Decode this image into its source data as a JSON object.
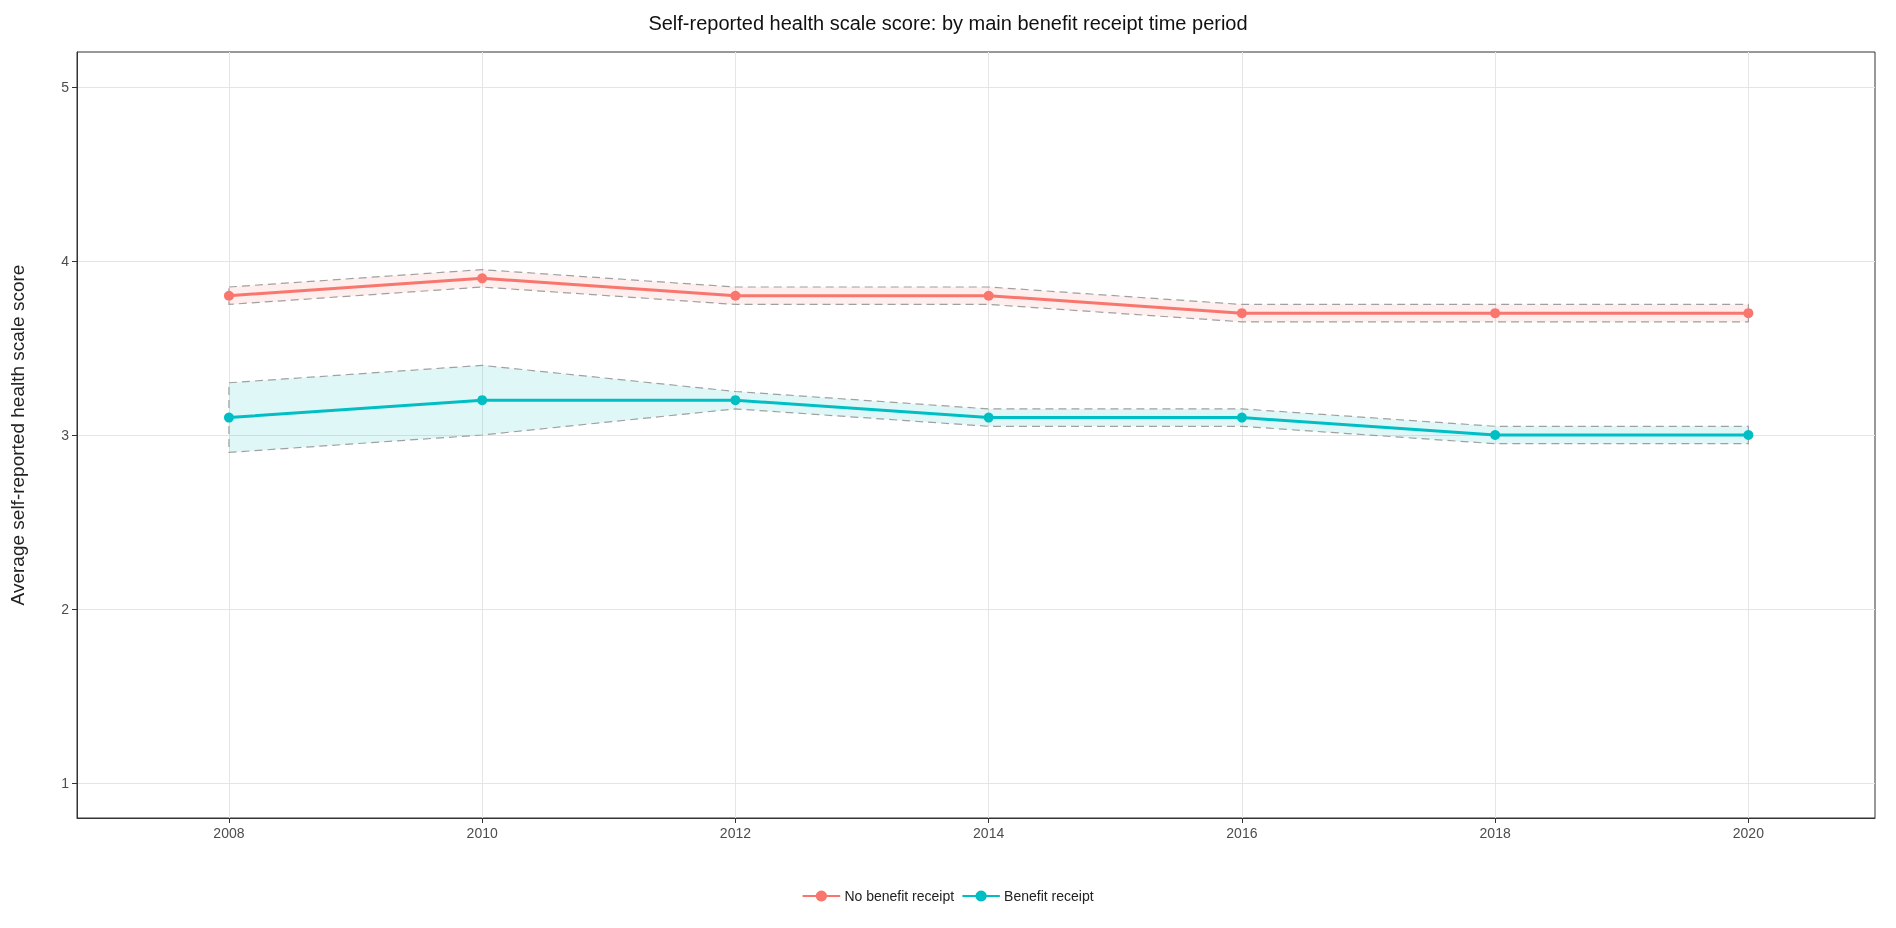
{
  "chart_data": {
    "type": "line",
    "title": "Self-reported health scale score: by main benefit receipt time period",
    "ylabel": "Average self-reported health scale score",
    "x": [
      2008,
      2010,
      2012,
      2014,
      2016,
      2018,
      2020
    ],
    "series": [
      {
        "name": "No benefit receipt",
        "color": "#f8766d",
        "values": [
          3.8,
          3.9,
          3.8,
          3.8,
          3.7,
          3.7,
          3.7
        ],
        "lower": [
          3.75,
          3.85,
          3.75,
          3.75,
          3.65,
          3.65,
          3.65
        ],
        "upper": [
          3.85,
          3.95,
          3.85,
          3.85,
          3.75,
          3.75,
          3.75
        ]
      },
      {
        "name": "Benefit receipt",
        "color": "#00bfc4",
        "values": [
          3.1,
          3.2,
          3.2,
          3.1,
          3.1,
          3.0,
          3.0
        ],
        "lower": [
          2.9,
          3.0,
          3.15,
          3.05,
          3.05,
          2.95,
          2.95
        ],
        "upper": [
          3.3,
          3.4,
          3.25,
          3.15,
          3.15,
          3.05,
          3.05
        ]
      }
    ],
    "xlim": [
      2006.8,
      2021
    ],
    "xticks": [
      2008,
      2010,
      2012,
      2014,
      2016,
      2018,
      2020
    ],
    "ylim": [
      0.8,
      5.2
    ],
    "yticks": [
      1,
      2,
      3,
      4,
      5
    ],
    "grid": true,
    "legend": "bottom",
    "marker": "circle",
    "line_style": "solid"
  }
}
